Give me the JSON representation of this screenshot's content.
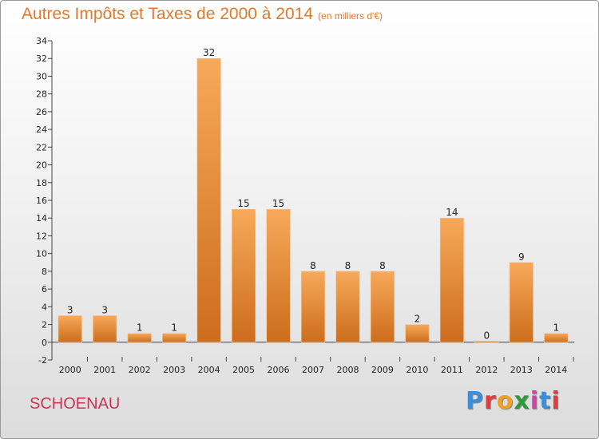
{
  "header": {
    "title": "Autres Impôts et Taxes de 2000 à 2014",
    "unit": "(en milliers d'€)"
  },
  "footer": {
    "commune": "SCHOENAU",
    "logo_letters": [
      "P",
      "r",
      "o",
      "x",
      "i",
      "t",
      "i"
    ],
    "logo_colors": [
      "#3a8fd8",
      "#e23c3c",
      "#f0a02a",
      "#2f9a3a",
      "#c64aa0",
      "#3a8fd8",
      "#e23c3c"
    ]
  },
  "colors": {
    "bar_light": "#f7a95a",
    "bar_dark": "#cc6d1c",
    "title": "#e07a2e",
    "commune": "#c8345a"
  },
  "chart_data": {
    "type": "bar",
    "categories": [
      "2000",
      "2001",
      "2002",
      "2003",
      "2004",
      "2005",
      "2006",
      "2007",
      "2008",
      "2009",
      "2010",
      "2011",
      "2012",
      "2013",
      "2014"
    ],
    "values": [
      3,
      3,
      1,
      1,
      32,
      15,
      15,
      8,
      8,
      8,
      2,
      14,
      0,
      9,
      1
    ],
    "title": "Autres Impôts et Taxes de 2000 à 2014",
    "xlabel": "",
    "ylabel": "",
    "ylim": [
      -2,
      34
    ],
    "yticks": [
      -2,
      0,
      2,
      4,
      6,
      8,
      10,
      12,
      14,
      16,
      18,
      20,
      22,
      24,
      26,
      28,
      30,
      32,
      34
    ],
    "grid": false,
    "legend": "none"
  }
}
